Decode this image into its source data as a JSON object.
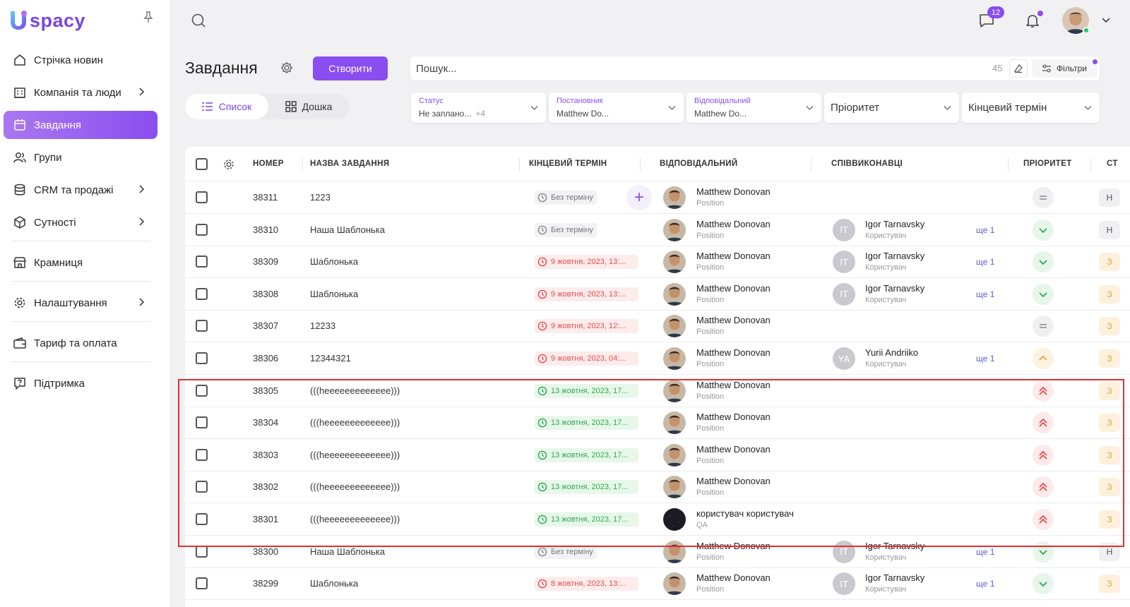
{
  "app": {
    "logo_text": "spacy",
    "logo_letter": "U"
  },
  "sidebar": {
    "items": [
      {
        "label": "Стрічка новин",
        "icon": "home-icon",
        "chevron": false,
        "active": false
      },
      {
        "label": "Компанія та люди",
        "icon": "building-icon",
        "chevron": true,
        "active": false
      },
      {
        "label": "Завдання",
        "icon": "calendar-icon",
        "chevron": false,
        "active": true
      },
      {
        "label": "Групи",
        "icon": "users-icon",
        "chevron": false,
        "active": false
      },
      {
        "label": "CRM та продажі",
        "icon": "database-icon",
        "chevron": true,
        "active": false
      },
      {
        "label": "Сутності",
        "icon": "cube-icon",
        "chevron": true,
        "active": false
      },
      {
        "label": "Крамниця",
        "icon": "store-icon",
        "chevron": false,
        "active": false
      },
      {
        "label": "Налаштування",
        "icon": "gear-icon",
        "chevron": true,
        "active": false
      },
      {
        "label": "Тариф та оплата",
        "icon": "wallet-icon",
        "chevron": false,
        "active": false
      },
      {
        "label": "Підтримка",
        "icon": "help-icon",
        "chevron": false,
        "active": false
      }
    ]
  },
  "header": {
    "messages_badge": "12"
  },
  "toolbar": {
    "title": "Завдання",
    "create_label": "Створити",
    "search_placeholder": "Пошук...",
    "search_count": "45",
    "filters_label": "Фільтри",
    "view_list": "Список",
    "view_board": "Дошка"
  },
  "filters": {
    "status": {
      "label": "Статус",
      "value": "Не заплано...",
      "extra": "+4"
    },
    "creator": {
      "label": "Постановник",
      "value": "Matthew Do..."
    },
    "assignee": {
      "label": "Відповідальний",
      "value": "Matthew Do..."
    },
    "priority": {
      "placeholder": "Пріоритет"
    },
    "deadline": {
      "placeholder": "Кінцевий термін"
    }
  },
  "table": {
    "columns": {
      "number": "НОМЕР",
      "name": "НАЗВА ЗАВДАННЯ",
      "deadline": "КІНЦЕВИЙ ТЕРМІН",
      "assignee": "ВІДПОВІДАЛЬНИЙ",
      "coexecutors": "СПІВВИКОНАВЦІ",
      "priority": "ПРІОРИТЕТ",
      "status": "СТ"
    },
    "rows": [
      {
        "number": "38311",
        "name": "1223",
        "due": "Без терміну",
        "due_kind": "none",
        "assignee": "Matthew Donovan",
        "position": "Position",
        "co_initials": "",
        "co_name": "",
        "co_role": "",
        "more": "",
        "priority": "normal",
        "status": "Н",
        "status_kind": "grey"
      },
      {
        "number": "38310",
        "name": "Наша Шаблонька",
        "due": "Без терміну",
        "due_kind": "none",
        "assignee": "Matthew Donovan",
        "position": "Position",
        "co_initials": "IT",
        "co_name": "Igor Tarnavsky",
        "co_role": "Користувач",
        "more": "ще 1",
        "priority": "low",
        "status": "Н",
        "status_kind": "grey"
      },
      {
        "number": "38309",
        "name": "Шаблонька",
        "due": "9 жовтня, 2023, 13:...",
        "due_kind": "late",
        "assignee": "Matthew Donovan",
        "position": "Position",
        "co_initials": "IT",
        "co_name": "Igor Tarnavsky",
        "co_role": "Користувач",
        "more": "ще 1",
        "priority": "low",
        "status": "З",
        "status_kind": "orange"
      },
      {
        "number": "38308",
        "name": "Шаблонька",
        "due": "9 жовтня, 2023, 13:...",
        "due_kind": "late",
        "assignee": "Matthew Donovan",
        "position": "Position",
        "co_initials": "IT",
        "co_name": "Igor Tarnavsky",
        "co_role": "Користувач",
        "more": "ще 1",
        "priority": "low",
        "status": "З",
        "status_kind": "orange"
      },
      {
        "number": "38307",
        "name": "12233",
        "due": "9 жовтня, 2023, 12:...",
        "due_kind": "late",
        "assignee": "Matthew Donovan",
        "position": "Position",
        "co_initials": "",
        "co_name": "",
        "co_role": "",
        "more": "",
        "priority": "normal",
        "status": "З",
        "status_kind": "orange"
      },
      {
        "number": "38306",
        "name": "12344321",
        "due": "9 жовтня, 2023, 04:...",
        "due_kind": "late",
        "assignee": "Matthew Donovan",
        "position": "Position",
        "co_initials": "YA",
        "co_name": "Yurii Andriiko",
        "co_role": "Користувач",
        "more": "ще 1",
        "priority": "medium",
        "status": "З",
        "status_kind": "orange"
      },
      {
        "number": "38305",
        "name": "(((heeeeeeeeeeeee)))",
        "due": "13 жовтня, 2023, 17...",
        "due_kind": "ok",
        "assignee": "Matthew Donovan",
        "position": "Position",
        "co_initials": "",
        "co_name": "",
        "co_role": "",
        "more": "",
        "priority": "high",
        "status": "З",
        "status_kind": "orange"
      },
      {
        "number": "38304",
        "name": "(((heeeeeeeeeeeee)))",
        "due": "13 жовтня, 2023, 17...",
        "due_kind": "ok",
        "assignee": "Matthew Donovan",
        "position": "Position",
        "co_initials": "",
        "co_name": "",
        "co_role": "",
        "more": "",
        "priority": "high",
        "status": "З",
        "status_kind": "orange"
      },
      {
        "number": "38303",
        "name": "(((heeeeeeeeeeeee)))",
        "due": "13 жовтня, 2023, 17...",
        "due_kind": "ok",
        "assignee": "Matthew Donovan",
        "position": "Position",
        "co_initials": "",
        "co_name": "",
        "co_role": "",
        "more": "",
        "priority": "high",
        "status": "З",
        "status_kind": "orange"
      },
      {
        "number": "38302",
        "name": "(((heeeeeeeeeeeee)))",
        "due": "13 жовтня, 2023, 17...",
        "due_kind": "ok",
        "assignee": "Matthew Donovan",
        "position": "Position",
        "co_initials": "",
        "co_name": "",
        "co_role": "",
        "more": "",
        "priority": "high",
        "status": "З",
        "status_kind": "orange"
      },
      {
        "number": "38301",
        "name": "(((heeeeeeeeeeeee)))",
        "due": "13 жовтня, 2023, 17...",
        "due_kind": "ok",
        "assignee": "користувач користувач",
        "position": "QA",
        "co_initials": "",
        "co_name": "",
        "co_role": "",
        "more": "",
        "priority": "high",
        "status": "З",
        "status_kind": "orange",
        "dark_avatar": true
      },
      {
        "number": "38300",
        "name": "Наша Шаблонька",
        "due": "Без терміну",
        "due_kind": "none",
        "assignee": "Matthew Donovan",
        "position": "Position",
        "co_initials": "IT",
        "co_name": "Igor Tarnavsky",
        "co_role": "Користувач",
        "more": "ще 1",
        "priority": "low",
        "status": "Н",
        "status_kind": "grey"
      },
      {
        "number": "38299",
        "name": "Шаблонька",
        "due": "8 жовтня, 2023, 13:...",
        "due_kind": "late",
        "assignee": "Matthew Donovan",
        "position": "Position",
        "co_initials": "IT",
        "co_name": "Igor Tarnavsky",
        "co_role": "Користувач",
        "more": "ще 1",
        "priority": "low",
        "status": "З",
        "status_kind": "orange"
      }
    ]
  },
  "colors": {
    "accent": "#8a4ef0",
    "late": "#e84b4b",
    "ok": "#2fa84f",
    "highlight": "#e23030"
  }
}
